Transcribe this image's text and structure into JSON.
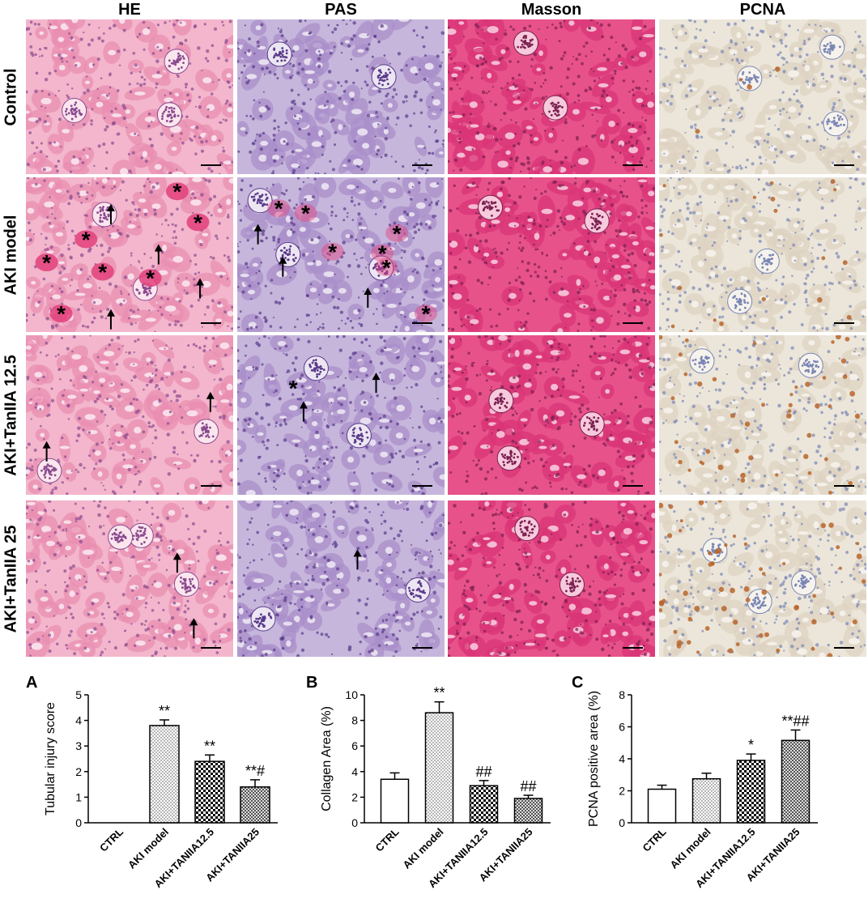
{
  "column_headers": [
    "HE",
    "PAS",
    "Masson",
    "PCNA"
  ],
  "row_labels": [
    "Control",
    "AKI model",
    "AKI+TanIIA 12.5",
    "AKI+TanIIA 25"
  ],
  "stain_colors": {
    "HE": {
      "bg": "#f3b6cc",
      "tissue": "#ea8fb2",
      "nucleus": "#8a4a8f",
      "lumen": "#fbe6ee"
    },
    "PAS": {
      "bg": "#c6b6dc",
      "tissue": "#a98fc9",
      "nucleus": "#5a3a8a",
      "lumen": "#ece6f3"
    },
    "Masson": {
      "bg": "#e8528a",
      "tissue": "#d93577",
      "nucleus": "#7a2050",
      "lumen": "#f7c9dc"
    },
    "PCNA": {
      "bg": "#ece6da",
      "tissue": "#ddd3c2",
      "nucleus": "#7a86b5",
      "lumen": "#f6f3ec"
    }
  },
  "cast_color": "#e2407a",
  "pcna_positive_color": "#b8652a",
  "charts": [
    {
      "letter": "A",
      "chart_data": {
        "type": "bar",
        "title": "",
        "ylabel": "Tubular injury score",
        "xlabel": "",
        "ylim": [
          0,
          5
        ],
        "yticks": [
          "0",
          "1",
          "2",
          "3",
          "4",
          "5"
        ],
        "categories": [
          "CTRL",
          "AKI model",
          "AKI+TANIIA12.5",
          "AKI+TANIIA25"
        ],
        "values": [
          0,
          3.8,
          2.4,
          1.4
        ],
        "errors": [
          0,
          0.22,
          0.25,
          0.28
        ],
        "annotations": [
          "",
          "**",
          "**",
          "**#"
        ],
        "patterns": [
          "open",
          "dots",
          "checker",
          "dense"
        ]
      }
    },
    {
      "letter": "B",
      "chart_data": {
        "type": "bar",
        "title": "",
        "ylabel": "Collagen Area (%)",
        "xlabel": "",
        "ylim": [
          0,
          10
        ],
        "yticks": [
          "0",
          "2",
          "4",
          "6",
          "8",
          "10"
        ],
        "categories": [
          "CTRL",
          "AKI model",
          "AKI+TANIIA12.5",
          "AKI+TANIIA25"
        ],
        "values": [
          3.4,
          8.6,
          2.9,
          1.9
        ],
        "errors": [
          0.5,
          0.85,
          0.4,
          0.25
        ],
        "annotations": [
          "",
          "**",
          "##",
          "##"
        ],
        "patterns": [
          "open",
          "dots",
          "checker",
          "dense"
        ]
      }
    },
    {
      "letter": "C",
      "chart_data": {
        "type": "bar",
        "title": "",
        "ylabel": "PCNA positive area (%)",
        "xlabel": "",
        "ylim": [
          0,
          8
        ],
        "yticks": [
          "0",
          "2",
          "4",
          "6",
          "8"
        ],
        "categories": [
          "CTRL",
          "AKI model",
          "AKI+TANIIA12.5",
          "AKI+TANIIA25"
        ],
        "values": [
          2.1,
          2.75,
          3.9,
          5.15
        ],
        "errors": [
          0.25,
          0.35,
          0.4,
          0.65
        ],
        "annotations": [
          "",
          "",
          "*",
          "**##"
        ],
        "patterns": [
          "open",
          "dots",
          "checker",
          "dense"
        ]
      }
    }
  ],
  "micrograph_marks": {
    "HE": [
      [],
      [
        {
          "type": "asterisk",
          "text": "*"
        },
        {
          "type": "asterisk",
          "text": "*"
        },
        {
          "type": "asterisk",
          "text": "*"
        },
        {
          "type": "asterisk",
          "text": "*"
        },
        {
          "type": "asterisk",
          "text": "*"
        },
        {
          "type": "asterisk",
          "text": "*"
        },
        {
          "type": "asterisk",
          "text": "*"
        },
        {
          "type": "arrow"
        },
        {
          "type": "arrow"
        },
        {
          "type": "arrow"
        },
        {
          "type": "arrow"
        }
      ],
      [
        {
          "type": "arrow"
        },
        {
          "type": "arrow"
        }
      ],
      [
        {
          "type": "arrow"
        },
        {
          "type": "arrow"
        }
      ]
    ],
    "PAS": [
      [],
      [
        {
          "type": "asterisk",
          "text": "*"
        },
        {
          "type": "asterisk",
          "text": "*"
        },
        {
          "type": "asterisk",
          "text": "*"
        },
        {
          "type": "asterisk",
          "text": "*"
        },
        {
          "type": "asterisk",
          "text": "*"
        },
        {
          "type": "asterisk",
          "text": "*"
        },
        {
          "type": "asterisk",
          "text": "*"
        },
        {
          "type": "arrow"
        },
        {
          "type": "arrow"
        },
        {
          "type": "arrow"
        }
      ],
      [
        {
          "type": "asterisk",
          "text": "*"
        },
        {
          "type": "arrow"
        },
        {
          "type": "arrow"
        }
      ],
      [
        {
          "type": "arrow"
        }
      ]
    ]
  }
}
